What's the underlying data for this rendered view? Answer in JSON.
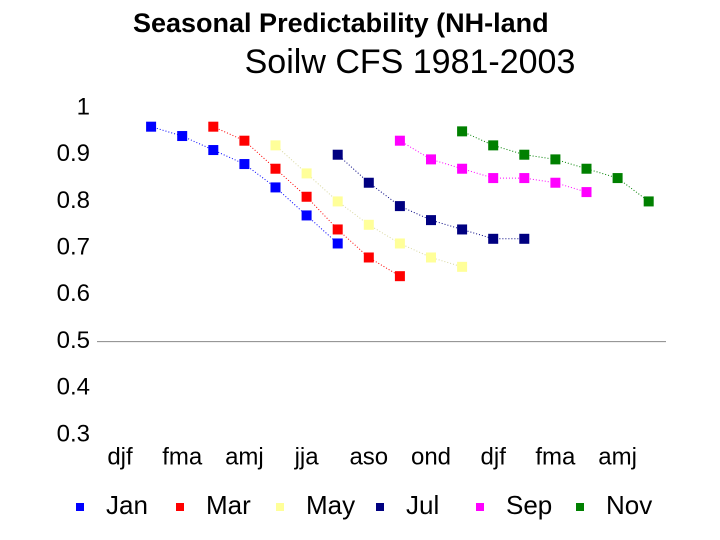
{
  "chart_data": {
    "type": "line",
    "title": "Seasonal Predictability (NH-land",
    "subtitle": "Soilw  CFS 1981-2003",
    "categories": [
      "djf",
      null,
      "fma",
      null,
      "amj",
      null,
      "jja",
      null,
      "aso",
      null,
      "ond",
      null,
      "djf",
      null,
      "fma",
      null,
      "amj",
      null
    ],
    "ylim": [
      0.3,
      1
    ],
    "yticks": [
      0.3,
      0.4,
      0.5,
      0.6,
      0.7,
      0.8,
      0.9,
      1
    ],
    "reference_line": 0.5,
    "series": [
      {
        "name": "Jan",
        "color": "#0000ff",
        "values": [
          null,
          0.96,
          0.94,
          0.91,
          0.88,
          0.83,
          0.77,
          0.71,
          null,
          null,
          null,
          null,
          null,
          null,
          null,
          null,
          null,
          null
        ]
      },
      {
        "name": "Mar",
        "color": "#ff0000",
        "values": [
          null,
          null,
          null,
          0.96,
          0.93,
          0.87,
          0.81,
          0.74,
          0.68,
          0.64,
          null,
          null,
          null,
          null,
          null,
          null,
          null,
          null
        ]
      },
      {
        "name": "May",
        "color": "#ffff99",
        "values": [
          null,
          null,
          null,
          null,
          null,
          0.92,
          0.86,
          0.8,
          0.75,
          0.71,
          0.68,
          0.66,
          null,
          null,
          null,
          null,
          null,
          null
        ]
      },
      {
        "name": "Jul",
        "color": "#000080",
        "values": [
          null,
          null,
          null,
          null,
          null,
          null,
          null,
          0.9,
          0.84,
          0.79,
          0.76,
          0.74,
          0.72,
          0.72,
          null,
          null,
          null,
          null
        ]
      },
      {
        "name": "Sep",
        "color": "#ff00ff",
        "values": [
          null,
          null,
          null,
          null,
          null,
          null,
          null,
          null,
          null,
          0.93,
          0.89,
          0.87,
          0.85,
          0.85,
          0.84,
          0.82,
          null,
          null
        ]
      },
      {
        "name": "Nov",
        "color": "#008000",
        "values": [
          null,
          null,
          null,
          null,
          null,
          null,
          null,
          null,
          null,
          null,
          null,
          0.95,
          0.92,
          0.9,
          0.89,
          0.87,
          0.85,
          0.8
        ]
      }
    ]
  }
}
